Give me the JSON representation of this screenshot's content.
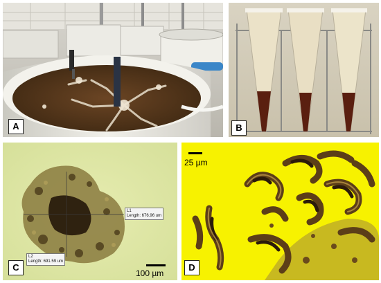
{
  "panels": {
    "a": {
      "label": "A"
    },
    "b": {
      "label": "B"
    },
    "c": {
      "label": "C",
      "measure1": {
        "line1": "L1",
        "line2": "Length:  676.96 um"
      },
      "measure2": {
        "line1": "L2",
        "line2": "Length:  691.59 um"
      },
      "scale_bar": "100 µm"
    },
    "d": {
      "label": "D",
      "scale_bar": "25 µm"
    }
  },
  "colors": {
    "tank_liquid": "#5a3a1c",
    "cone_supernatant": "#e8dcc0",
    "cone_sediment": "#5a1f10",
    "c_background": "#dfe7a6",
    "d_background": "#f7f200"
  }
}
